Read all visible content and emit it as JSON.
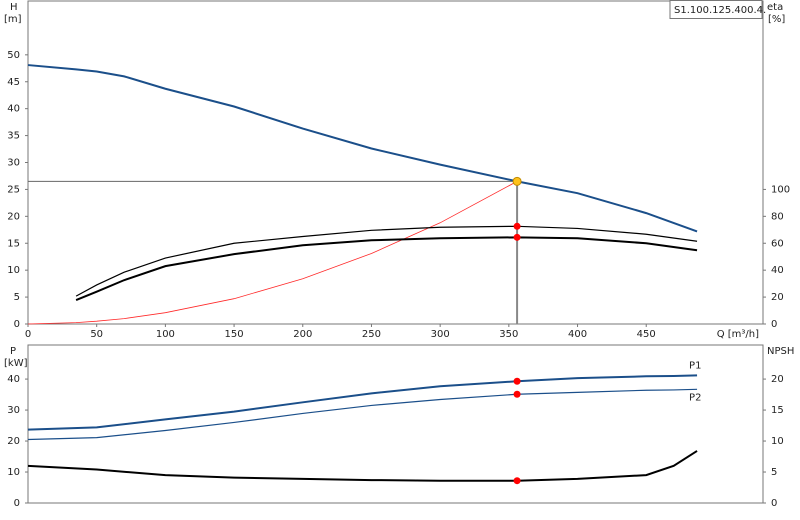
{
  "chart_data": [
    {
      "type": "line",
      "title": "S1.100.125.400.4.",
      "ylabel": "H",
      "yunit": "[m]",
      "y2label": "eta",
      "y2unit": "[%]",
      "xlabel": "Q [m³/h]",
      "xlim": [
        0,
        535
      ],
      "xticks": [
        0,
        50,
        100,
        150,
        200,
        250,
        300,
        350,
        400,
        450
      ],
      "ylim": [
        0,
        60
      ],
      "yticks": [
        0,
        5,
        10,
        15,
        20,
        25,
        30,
        35,
        40,
        45,
        50
      ],
      "y2lim": [
        0,
        240
      ],
      "y2ticks": [
        0,
        20,
        40,
        60,
        80,
        100
      ],
      "operating_x": 356,
      "operating_y": 26.5,
      "x": [
        0,
        35,
        50,
        70,
        100,
        150,
        200,
        250,
        300,
        356,
        400,
        450,
        487
      ],
      "series": [
        {
          "color": "#1b4f8a",
          "width": 2,
          "values": [
            48.1,
            47.3,
            46.9,
            46.0,
            43.7,
            40.4,
            36.3,
            32.6,
            29.6,
            26.5,
            24.3,
            20.6,
            17.2
          ]
        },
        {
          "color": "#ff2a2a",
          "width": 0.8,
          "values": [
            0,
            0.26,
            0.52,
            1.0,
            2.1,
            4.7,
            8.4,
            13.1,
            18.8,
            26.5,
            null,
            null,
            null
          ]
        },
        {
          "color": "#000000",
          "width": 1.2,
          "axis": "y2",
          "marker": "#ff0000",
          "values": [
            null,
            20.7,
            29,
            38.5,
            49,
            60,
            65,
            69.6,
            71.9,
            72.6,
            71,
            66.7,
            61.5
          ]
        },
        {
          "color": "#000000",
          "width": 2,
          "axis": "y2",
          "marker": "#ff0000",
          "values": [
            null,
            17.8,
            24,
            32.6,
            43,
            51.9,
            58.5,
            62.2,
            63.7,
            64.4,
            63.7,
            60,
            54.8
          ]
        }
      ]
    },
    {
      "type": "line",
      "ylabel": "P",
      "yunit": "[kW]",
      "y2label": "NPSH",
      "xlim": [
        0,
        535
      ],
      "ylim": [
        0,
        51
      ],
      "yticks": [
        0,
        10,
        20,
        30,
        40
      ],
      "y2lim": [
        0,
        25.5
      ],
      "y2ticks": [
        0,
        5,
        10,
        15,
        20
      ],
      "operating_x": 356,
      "x": [
        0,
        50,
        100,
        150,
        200,
        250,
        300,
        356,
        400,
        450,
        470,
        487
      ],
      "series": [
        {
          "name": "P1",
          "color": "#1b4f8a",
          "width": 2,
          "marker": "#ff0000",
          "values": [
            23.7,
            24.4,
            27,
            29.5,
            32.5,
            35.4,
            37.7,
            39.3,
            40.3,
            40.9,
            41.0,
            41.2
          ]
        },
        {
          "name": "P2",
          "color": "#1b4f8a",
          "width": 1.2,
          "marker": "#ff0000",
          "values": [
            20.5,
            21.1,
            23.4,
            26,
            28.9,
            31.5,
            33.4,
            35.1,
            35.7,
            36.4,
            36.5,
            36.7
          ]
        },
        {
          "color": "#000000",
          "width": 2,
          "axis": "y2",
          "marker": "#ff0000",
          "values": [
            6.0,
            5.4,
            4.5,
            4.1,
            3.9,
            3.7,
            3.6,
            3.6,
            3.9,
            4.5,
            6.0,
            8.4
          ]
        }
      ]
    }
  ]
}
